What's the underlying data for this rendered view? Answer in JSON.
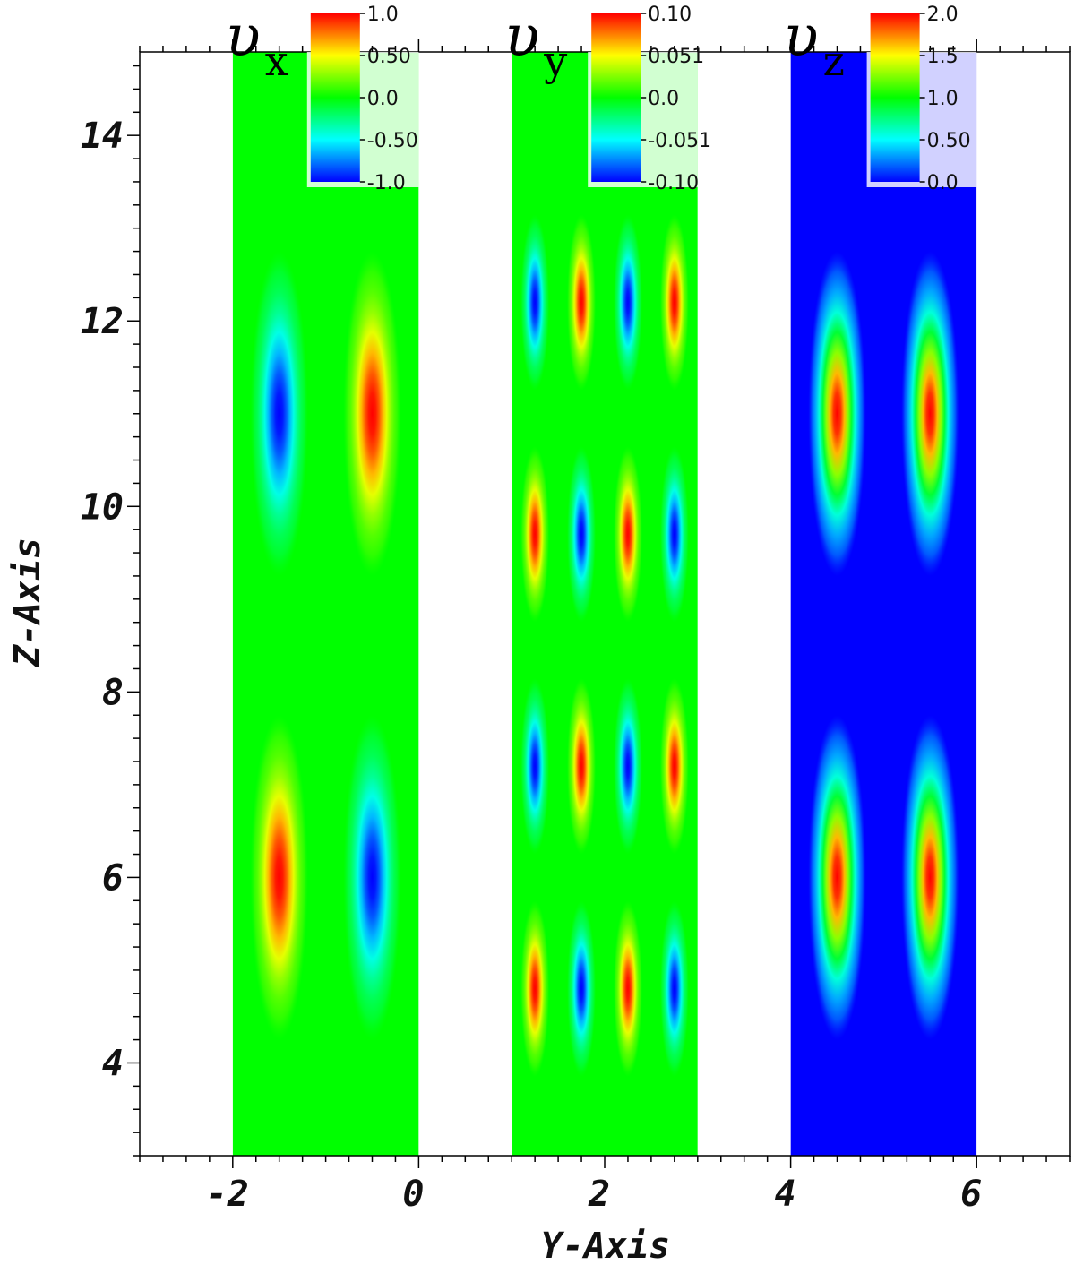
{
  "chart_data": {
    "type": "heatmap",
    "xlabel": "Y-Axis",
    "ylabel": "Z-Axis",
    "xlim": [
      -3.0,
      7.0
    ],
    "ylim": [
      3.0,
      14.9
    ],
    "x_ticks": [
      -2,
      0,
      2,
      4,
      6
    ],
    "x_tick_labels": [
      "-2",
      "0",
      "2",
      "4",
      "6"
    ],
    "y_ticks": [
      4,
      6,
      8,
      10,
      12,
      14
    ],
    "y_tick_labels": [
      "4",
      "6",
      "8",
      "10",
      "12",
      "14"
    ],
    "colormap": [
      "#0000ff",
      "#00ffff",
      "#00ff00",
      "#ffff00",
      "#ff0000"
    ],
    "panels": [
      {
        "symbol": "υ",
        "subscript": "x",
        "y_range": [
          -2,
          0
        ],
        "z_range": [
          3.0,
          14.9
        ],
        "colorbar": {
          "min": -1.0,
          "max": 1.0,
          "labels": [
            "1.0",
            "0.50",
            "0.0",
            "-0.50",
            "-1.0"
          ]
        },
        "peaks": [
          {
            "y": -1.5,
            "z": 6.0,
            "value": 1.0
          },
          {
            "y": -0.5,
            "z": 6.0,
            "value": -1.0
          },
          {
            "y": -1.5,
            "z": 11.0,
            "value": -1.0
          },
          {
            "y": -0.5,
            "z": 11.0,
            "value": 1.0
          }
        ]
      },
      {
        "symbol": "υ",
        "subscript": "y",
        "y_range": [
          1,
          3
        ],
        "z_range": [
          3.0,
          14.9
        ],
        "colorbar": {
          "min": -0.1,
          "max": 0.1,
          "labels": [
            "0.10",
            "0.051",
            "0.0",
            "-0.051",
            "-0.10"
          ]
        },
        "peaks": [
          {
            "y": 1.25,
            "z": 4.8,
            "value": 0.1
          },
          {
            "y": 1.75,
            "z": 4.8,
            "value": -0.1
          },
          {
            "y": 2.25,
            "z": 4.8,
            "value": 0.1
          },
          {
            "y": 2.75,
            "z": 4.8,
            "value": -0.1
          },
          {
            "y": 1.25,
            "z": 7.2,
            "value": -0.1
          },
          {
            "y": 1.75,
            "z": 7.2,
            "value": 0.1
          },
          {
            "y": 2.25,
            "z": 7.2,
            "value": -0.1
          },
          {
            "y": 2.75,
            "z": 7.2,
            "value": 0.1
          },
          {
            "y": 1.25,
            "z": 9.7,
            "value": 0.1
          },
          {
            "y": 1.75,
            "z": 9.7,
            "value": -0.1
          },
          {
            "y": 2.25,
            "z": 9.7,
            "value": 0.1
          },
          {
            "y": 2.75,
            "z": 9.7,
            "value": -0.1
          },
          {
            "y": 1.25,
            "z": 12.2,
            "value": -0.1
          },
          {
            "y": 1.75,
            "z": 12.2,
            "value": 0.1
          },
          {
            "y": 2.25,
            "z": 12.2,
            "value": -0.1
          },
          {
            "y": 2.75,
            "z": 12.2,
            "value": 0.1
          }
        ]
      },
      {
        "symbol": "υ",
        "subscript": "z",
        "y_range": [
          4,
          6
        ],
        "z_range": [
          3.0,
          14.9
        ],
        "colorbar": {
          "min": 0.0,
          "max": 2.0,
          "labels": [
            "2.0",
            "1.5",
            "1.0",
            "0.50",
            "0.0"
          ]
        },
        "peaks": [
          {
            "y": 4.5,
            "z": 6.0,
            "value": 2.0
          },
          {
            "y": 5.5,
            "z": 6.0,
            "value": 2.0
          },
          {
            "y": 4.5,
            "z": 11.0,
            "value": 2.0
          },
          {
            "y": 5.5,
            "z": 11.0,
            "value": 2.0
          }
        ]
      }
    ]
  }
}
